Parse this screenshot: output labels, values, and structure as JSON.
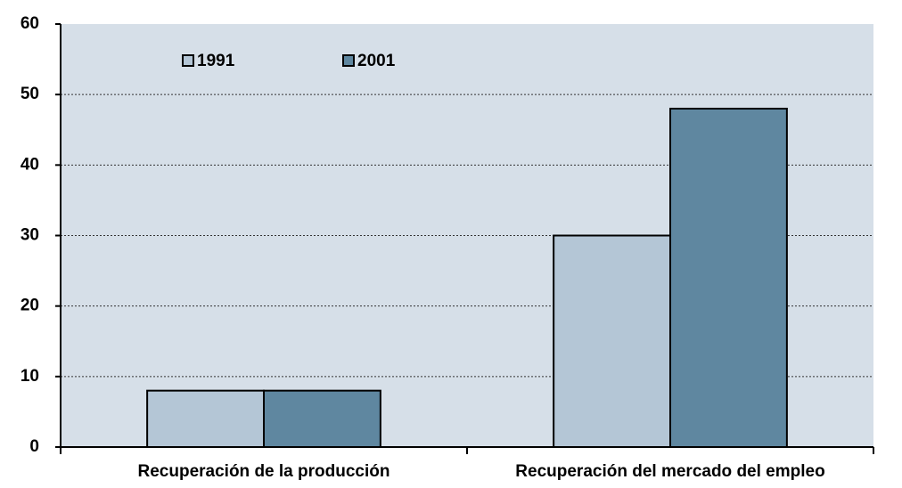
{
  "chart_data": {
    "type": "bar",
    "categories": [
      "Recuperación de la producción",
      "Recuperación del mercado del empleo"
    ],
    "series": [
      {
        "name": "1991",
        "color": "#b4c6d6",
        "values": [
          8,
          30
        ]
      },
      {
        "name": "2001",
        "color": "#5f87a0",
        "values": [
          8,
          48
        ]
      }
    ],
    "ylim": [
      0,
      60
    ],
    "yticks": [
      0,
      10,
      20,
      30,
      40,
      50,
      60
    ],
    "grid": true
  }
}
